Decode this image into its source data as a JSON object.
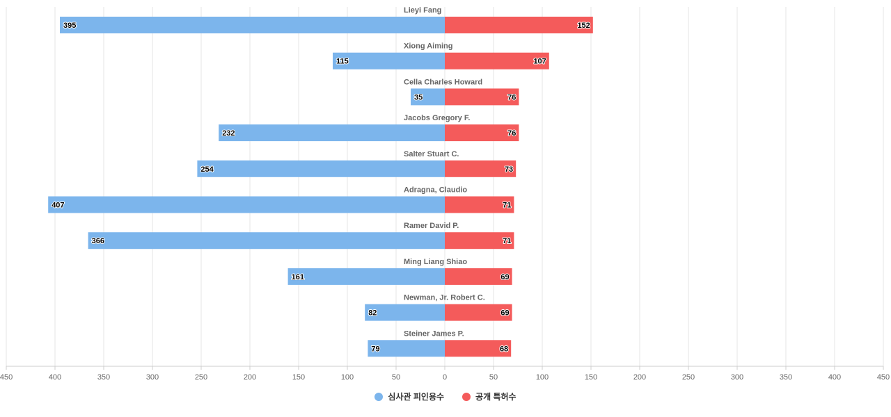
{
  "chart_data": {
    "type": "bar",
    "orientation": "horizontal-diverging",
    "categories": [
      "Lieyi Fang",
      "Xiong Aiming",
      "Cella Charles Howard",
      "Jacobs Gregory F.",
      "Salter Stuart C.",
      "Adragna, Claudio",
      "Ramer David P.",
      "Ming Liang Shiao",
      "Newman, Jr. Robert C.",
      "Steiner James P."
    ],
    "series": [
      {
        "name": "심사관 피인용수",
        "color": "#7cb5ec",
        "side": "left",
        "values": [
          395,
          115,
          35,
          232,
          254,
          407,
          366,
          161,
          82,
          79
        ]
      },
      {
        "name": "공개 특허수",
        "color": "#f45b5b",
        "side": "right",
        "values": [
          152,
          107,
          76,
          76,
          73,
          71,
          71,
          69,
          69,
          68
        ]
      }
    ],
    "xlim": [
      -450,
      450
    ],
    "tick_step": 50,
    "tick_labels": [
      "450",
      "400",
      "350",
      "300",
      "250",
      "200",
      "150",
      "100",
      "50",
      "0",
      "50",
      "100",
      "150",
      "200",
      "250",
      "300",
      "350",
      "400",
      "450"
    ],
    "grid": true,
    "legend": "bottom-center",
    "title": "",
    "xlabel": "",
    "ylabel": ""
  }
}
